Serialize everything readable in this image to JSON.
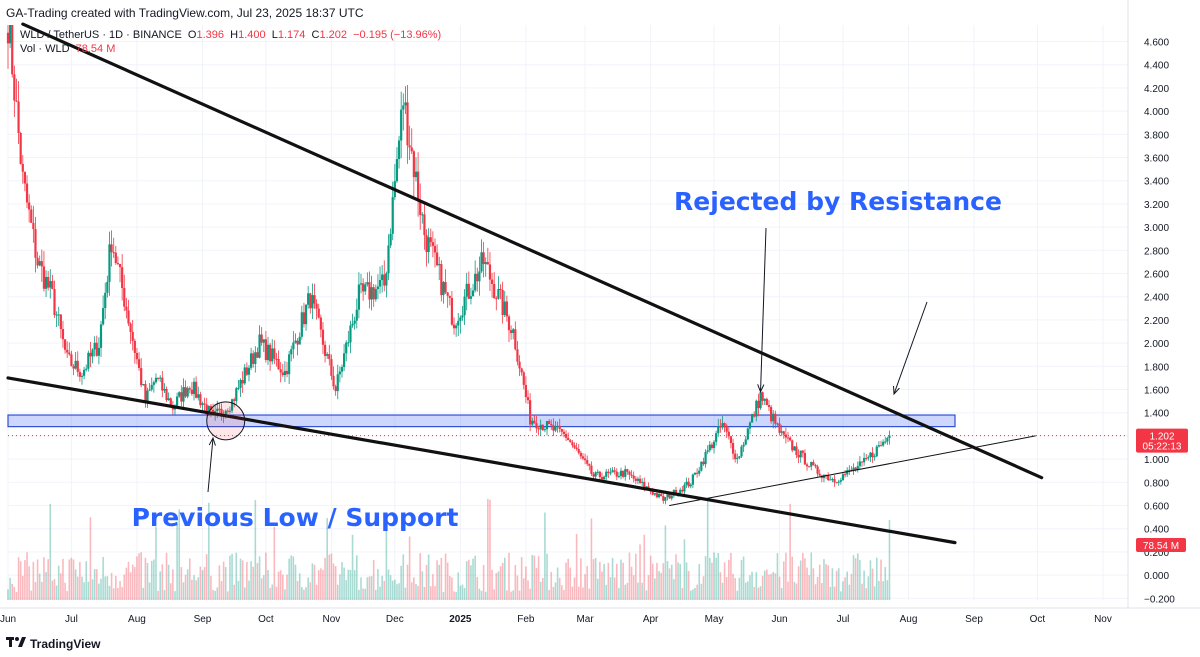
{
  "header": {
    "created_by": "GA-Trading created with TradingView.com, Jul 23, 2025 18:37 UTC",
    "symbol_line": "WLD / TetherUS · 1D · BINANCE",
    "open_label": "O",
    "open": "1.396",
    "high_label": "H",
    "high": "1.400",
    "low_label": "L",
    "low": "1.174",
    "close_label": "C",
    "close": "1.202",
    "change": "−0.195 (−13.96%)",
    "volume_line": "Vol · WLD",
    "volume_value": "78.54 M"
  },
  "footer": {
    "brand": "TradingView",
    "logo": "tv-logo-icon"
  },
  "price_badge": {
    "price": "1.202",
    "countdown": "05:22:13"
  },
  "volume_badge": "78.54 M",
  "annotations": {
    "resistance": "Rejected by Resistance",
    "support": "Previous Low / Support"
  },
  "colors": {
    "up": "#089981",
    "down": "#f23645",
    "zone": "#4a6cf7",
    "annotation_text": "#2962ff"
  },
  "chart_data": {
    "type": "candlestick",
    "symbol": "WLD / TetherUS",
    "interval": "1D",
    "ylim": [
      -0.25,
      4.7
    ],
    "y_ticks": [
      "4.600",
      "4.400",
      "4.200",
      "4.000",
      "3.800",
      "3.600",
      "3.400",
      "3.200",
      "3.000",
      "2.800",
      "2.600",
      "2.400",
      "2.200",
      "2.000",
      "1.800",
      "1.600",
      "1.400",
      "1.200",
      "1.000",
      "0.800",
      "0.600",
      "0.400",
      "0.200",
      "0.000",
      "−0.200"
    ],
    "x_ticks": [
      "Jun",
      "Jul",
      "Aug",
      "Sep",
      "Oct",
      "Nov",
      "Dec",
      "2025",
      "Feb",
      "Mar",
      "Apr",
      "May",
      "Jun",
      "Jul",
      "Aug",
      "Sep",
      "Oct",
      "Nov"
    ],
    "price_path": [
      [
        "2024-06-01",
        4.8
      ],
      [
        "2024-06-08",
        3.4
      ],
      [
        "2024-06-15",
        2.7
      ],
      [
        "2024-06-22",
        2.4
      ],
      [
        "2024-06-29",
        1.85
      ],
      [
        "2024-07-06",
        1.75
      ],
      [
        "2024-07-14",
        2.0
      ],
      [
        "2024-07-20",
        2.9
      ],
      [
        "2024-07-27",
        2.3
      ],
      [
        "2024-08-05",
        1.5
      ],
      [
        "2024-08-10",
        1.7
      ],
      [
        "2024-08-18",
        1.45
      ],
      [
        "2024-08-26",
        1.65
      ],
      [
        "2024-09-06",
        1.35
      ],
      [
        "2024-09-15",
        1.5
      ],
      [
        "2024-09-28",
        2.0
      ],
      [
        "2024-10-10",
        1.75
      ],
      [
        "2024-10-22",
        2.4
      ],
      [
        "2024-11-03",
        1.6
      ],
      [
        "2024-11-14",
        2.4
      ],
      [
        "2024-11-26",
        2.5
      ],
      [
        "2024-12-05",
        4.1
      ],
      [
        "2024-12-15",
        2.95
      ],
      [
        "2024-12-29",
        2.2
      ],
      [
        "2025-01-12",
        2.7
      ],
      [
        "2025-01-26",
        2.1
      ],
      [
        "2025-02-03",
        1.35
      ],
      [
        "2025-02-20",
        1.2
      ],
      [
        "2025-03-05",
        0.85
      ],
      [
        "2025-03-20",
        0.88
      ],
      [
        "2025-04-07",
        0.65
      ],
      [
        "2025-04-20",
        0.8
      ],
      [
        "2025-05-05",
        1.3
      ],
      [
        "2025-05-12",
        1.0
      ],
      [
        "2025-05-23",
        1.55
      ],
      [
        "2025-06-02",
        1.2
      ],
      [
        "2025-06-18",
        0.9
      ],
      [
        "2025-06-27",
        0.82
      ],
      [
        "2025-07-10",
        0.95
      ],
      [
        "2025-07-23",
        1.202
      ]
    ],
    "trendlines": [
      {
        "name": "resistance",
        "from": [
          "2024-06-08",
          4.75
        ],
        "to": [
          "2025-10-03",
          0.84
        ]
      },
      {
        "name": "support",
        "from": [
          "2024-06-01",
          1.7
        ],
        "to": [
          "2025-08-23",
          0.28
        ]
      },
      {
        "name": "rising-support",
        "from": [
          "2025-04-10",
          0.6
        ],
        "to": [
          "2025-09-30",
          1.2
        ]
      }
    ],
    "zone": {
      "name": "resistance-support-zone",
      "from": "2024-06-01",
      "to": "2025-08-23",
      "low": 1.28,
      "high": 1.38
    },
    "last_price_line": 1.202
  }
}
